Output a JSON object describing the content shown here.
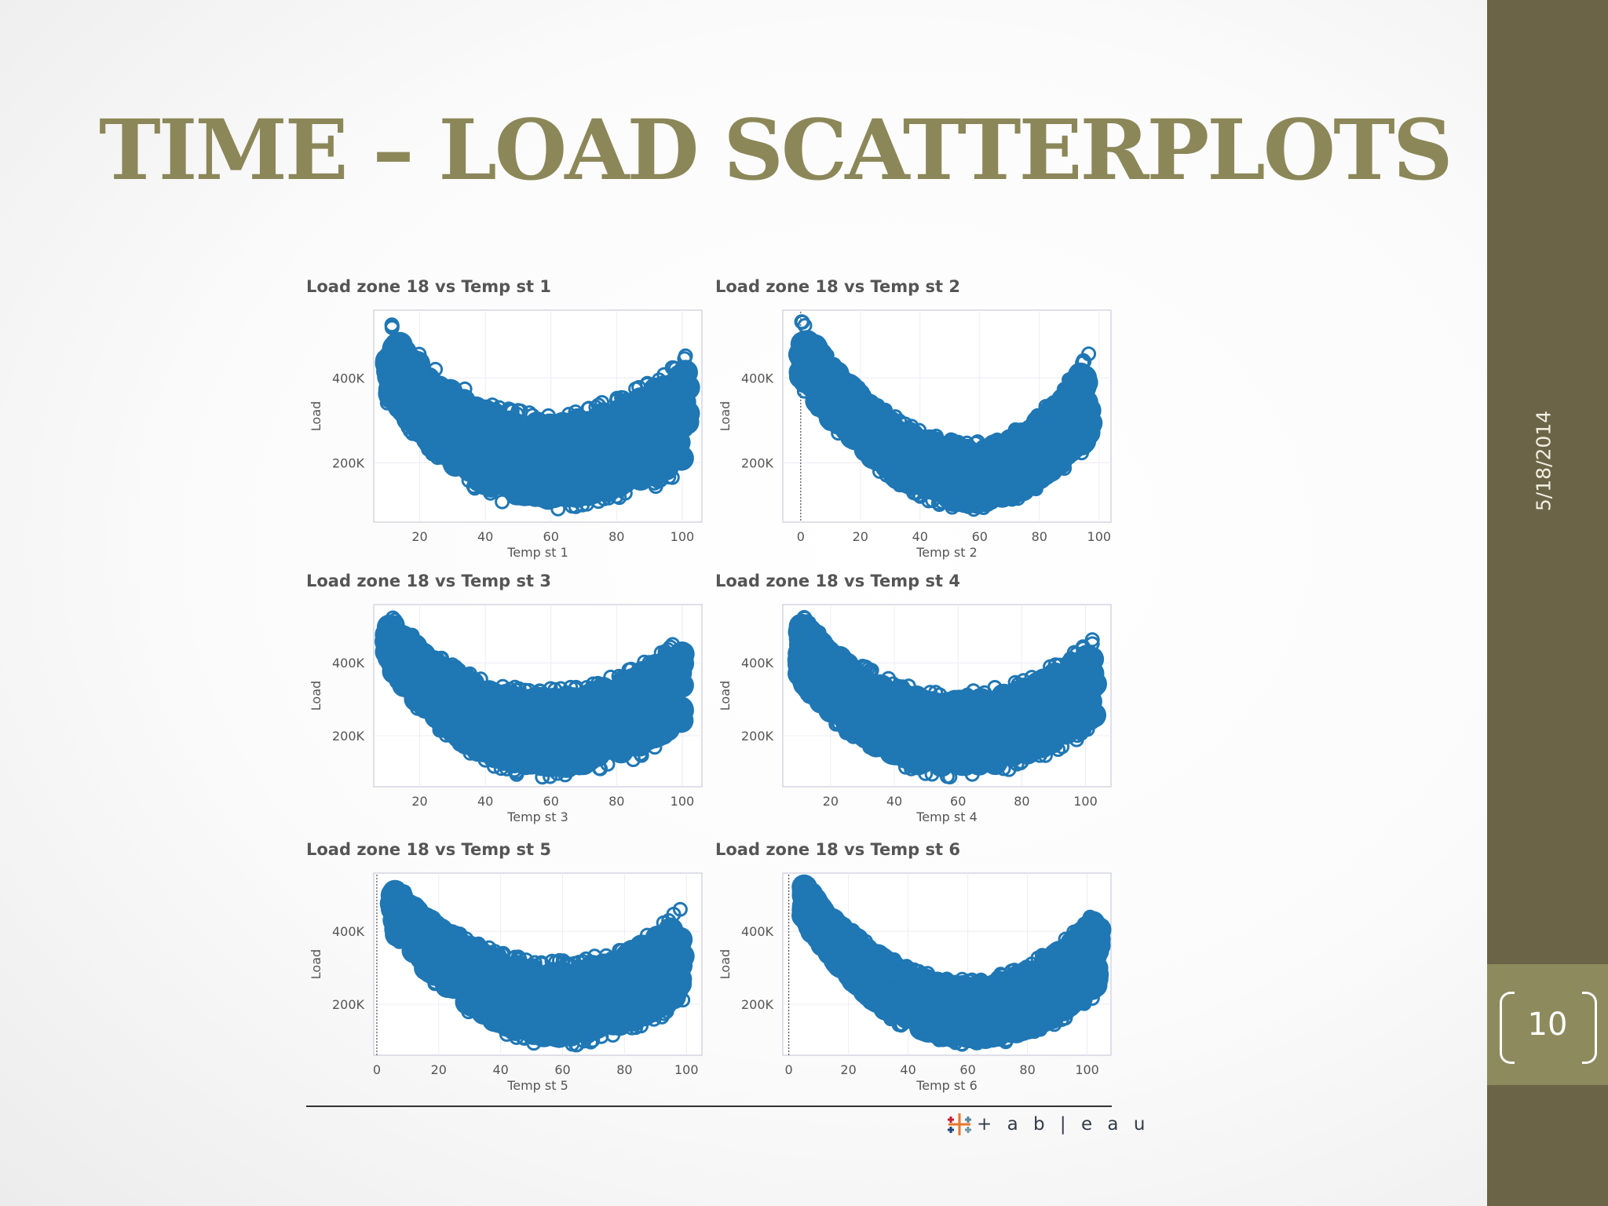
{
  "slide": {
    "title": "TIME – LOAD SCATTERPLOTS",
    "date": "5/18/2014",
    "slide_number": "10",
    "logo_text": "+ a b | e a u"
  },
  "colors": {
    "title": "#8b8758",
    "sidebar": "#6b6447",
    "number_box": "#8d8a5d",
    "marker": "#1f77b4"
  },
  "chart_data": [
    {
      "type": "scatter",
      "title": "Load zone 18 vs Temp st 1",
      "xlabel": "Temp st 1",
      "ylabel": "Load",
      "xlim": [
        6,
        106
      ],
      "ylim": [
        60000,
        560000
      ],
      "xticks": [
        20,
        40,
        60,
        80,
        100
      ],
      "yticks": [
        200000,
        400000
      ],
      "ytick_labels": [
        "200K",
        "400K"
      ],
      "trend": {
        "x_min": 10,
        "x_max": 102,
        "vertex_x": 58,
        "lower_min": 90000,
        "lower_left": 340000,
        "lower_right": 180000,
        "upper_min": 320000,
        "upper_left": 540000,
        "upper_right": 460000
      },
      "grid": true
    },
    {
      "type": "scatter",
      "title": "Load zone 18 vs Temp st 2",
      "xlabel": "Temp st 2",
      "ylabel": "Load",
      "xlim": [
        -6,
        104
      ],
      "ylim": [
        60000,
        560000
      ],
      "xticks": [
        0,
        20,
        40,
        60,
        80,
        100
      ],
      "yticks": [
        200000,
        400000
      ],
      "ytick_labels": [
        "200K",
        "400K"
      ],
      "trend": {
        "x_min": 0,
        "x_max": 97,
        "vertex_x": 58,
        "lower_min": 90000,
        "lower_left": 380000,
        "lower_right": 240000,
        "upper_min": 250000,
        "upper_left": 540000,
        "upper_right": 470000
      },
      "grid": true
    },
    {
      "type": "scatter",
      "title": "Load zone 18 vs Temp st 3",
      "xlabel": "Temp st 3",
      "ylabel": "Load",
      "xlim": [
        6,
        106
      ],
      "ylim": [
        60000,
        560000
      ],
      "xticks": [
        20,
        40,
        60,
        80,
        100
      ],
      "yticks": [
        200000,
        400000
      ],
      "ytick_labels": [
        "200K",
        "400K"
      ],
      "trend": {
        "x_min": 10,
        "x_max": 100,
        "vertex_x": 57,
        "lower_min": 85000,
        "lower_left": 380000,
        "lower_right": 200000,
        "upper_min": 330000,
        "upper_left": 540000,
        "upper_right": 470000
      },
      "grid": true
    },
    {
      "type": "scatter",
      "title": "Load zone 18 vs Temp st 4",
      "xlabel": "Temp st 4",
      "ylabel": "Load",
      "xlim": [
        5,
        108
      ],
      "ylim": [
        60000,
        560000
      ],
      "xticks": [
        20,
        40,
        60,
        80,
        100
      ],
      "yticks": [
        200000,
        400000
      ],
      "ytick_labels": [
        "200K",
        "400K"
      ],
      "trend": {
        "x_min": 10,
        "x_max": 103,
        "vertex_x": 58,
        "lower_min": 85000,
        "lower_left": 340000,
        "lower_right": 220000,
        "upper_min": 320000,
        "upper_left": 540000,
        "upper_right": 470000
      },
      "grid": true
    },
    {
      "type": "scatter",
      "title": "Load zone 18 vs Temp st 5",
      "xlabel": "Temp st 5",
      "ylabel": "Load",
      "xlim": [
        -1,
        105
      ],
      "ylim": [
        60000,
        560000
      ],
      "xticks": [
        0,
        20,
        40,
        60,
        80,
        100
      ],
      "yticks": [
        200000,
        400000
      ],
      "ytick_labels": [
        "200K",
        "400K"
      ],
      "trend": {
        "x_min": 5,
        "x_max": 99,
        "vertex_x": 58,
        "lower_min": 85000,
        "lower_left": 390000,
        "lower_right": 200000,
        "upper_min": 320000,
        "upper_left": 540000,
        "upper_right": 470000
      },
      "grid": true
    },
    {
      "type": "scatter",
      "title": "Load zone 18 vs Temp st 6",
      "xlabel": "Temp st 6",
      "ylabel": "Load",
      "xlim": [
        -2,
        108
      ],
      "ylim": [
        60000,
        560000
      ],
      "xticks": [
        0,
        20,
        40,
        60,
        80,
        100
      ],
      "yticks": [
        200000,
        400000
      ],
      "ytick_labels": [
        "200K",
        "400K"
      ],
      "trend": {
        "x_min": 5,
        "x_max": 104,
        "vertex_x": 60,
        "lower_min": 85000,
        "lower_left": 420000,
        "lower_right": 220000,
        "upper_min": 270000,
        "upper_left": 540000,
        "upper_right": 470000
      },
      "grid": true
    }
  ]
}
